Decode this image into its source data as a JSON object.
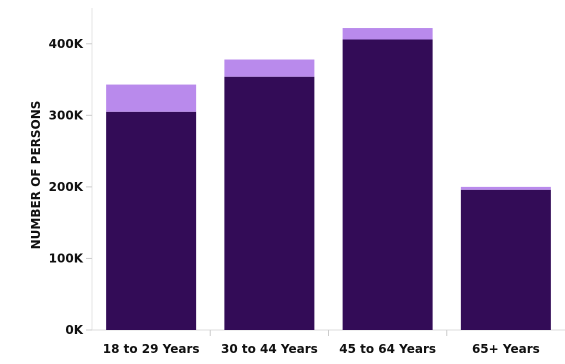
{
  "chart_data": {
    "type": "bar",
    "stacked": true,
    "categories": [
      "18 to 29 Years",
      "30 to 44 Years",
      "45 to 64 Years",
      "65+ Years"
    ],
    "series": [
      {
        "values": [
          305000,
          354000,
          406000,
          196000
        ],
        "color": "#330c57"
      },
      {
        "values": [
          38000,
          24000,
          16000,
          4000
        ],
        "color": "#b98aec"
      }
    ],
    "ylabel": "NUMBER OF PERSONS",
    "ylim": [
      0,
      450000
    ],
    "yticks": [
      0,
      100000,
      200000,
      300000,
      400000
    ],
    "ytick_labels": [
      "0K",
      "100K",
      "200K",
      "300K",
      "400K"
    ],
    "grid": false,
    "legend": "none"
  }
}
